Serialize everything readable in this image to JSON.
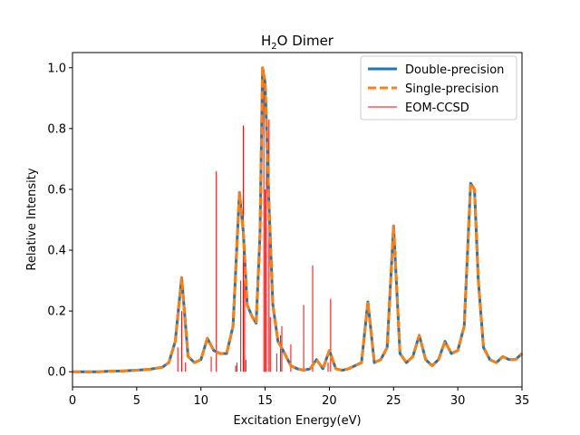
{
  "chart_data": {
    "type": "line",
    "title": "H",
    "title_sub": "2",
    "title_rest": "O Dimer",
    "xlabel": "Excitation Energy(eV)",
    "ylabel": "Relative Intensity",
    "xlim": [
      0,
      35
    ],
    "ylim": [
      -0.05,
      1.05
    ],
    "xticks": [
      0,
      5,
      10,
      15,
      20,
      25,
      30,
      35
    ],
    "xtick_labels": [
      "0",
      "5",
      "10",
      "15",
      "20",
      "25",
      "30",
      "35"
    ],
    "yticks": [
      0.0,
      0.2,
      0.4,
      0.6,
      0.8,
      1.0
    ],
    "ytick_labels": [
      "0.0",
      "0.2",
      "0.4",
      "0.6",
      "0.8",
      "1.0"
    ],
    "grid": false,
    "legend_position": "top-right",
    "x": [
      0,
      1,
      2,
      3,
      4,
      5,
      6,
      7,
      7.5,
      8,
      8.5,
      9,
      9.5,
      10,
      10.5,
      11,
      11.5,
      12,
      12.5,
      13,
      13.3,
      13.6,
      14,
      14.3,
      14.6,
      14.8,
      15,
      15.3,
      15.6,
      16,
      16.4,
      17,
      17.5,
      18,
      18.5,
      19,
      19.5,
      20,
      20.5,
      21,
      21.5,
      22,
      22.5,
      23,
      23.5,
      24,
      24.5,
      25,
      25.5,
      26,
      26.5,
      27,
      27.5,
      28,
      28.5,
      29,
      29.5,
      30,
      30.5,
      31,
      31.3,
      31.6,
      32,
      32.5,
      33,
      33.5,
      34,
      34.5,
      35
    ],
    "series": [
      {
        "name": "Double-precision",
        "color": "#1f77b4",
        "style": "solid",
        "values": [
          0.0,
          0.0,
          0.0,
          0.002,
          0.003,
          0.005,
          0.008,
          0.015,
          0.03,
          0.1,
          0.31,
          0.05,
          0.03,
          0.04,
          0.11,
          0.07,
          0.06,
          0.06,
          0.15,
          0.59,
          0.46,
          0.22,
          0.18,
          0.16,
          0.45,
          1.0,
          0.95,
          0.55,
          0.22,
          0.1,
          0.07,
          0.02,
          0.01,
          0.005,
          0.01,
          0.04,
          0.01,
          0.07,
          0.01,
          0.005,
          0.01,
          0.02,
          0.03,
          0.23,
          0.03,
          0.04,
          0.08,
          0.48,
          0.06,
          0.03,
          0.05,
          0.12,
          0.04,
          0.02,
          0.04,
          0.1,
          0.06,
          0.07,
          0.15,
          0.62,
          0.6,
          0.3,
          0.08,
          0.04,
          0.03,
          0.05,
          0.04,
          0.04,
          0.06
        ]
      },
      {
        "name": "Single-precision",
        "color": "#ff7f0e",
        "style": "dashed",
        "values": [
          0.0,
          0.0,
          0.0,
          0.002,
          0.003,
          0.005,
          0.008,
          0.015,
          0.03,
          0.1,
          0.31,
          0.05,
          0.03,
          0.04,
          0.11,
          0.07,
          0.06,
          0.06,
          0.15,
          0.59,
          0.46,
          0.22,
          0.18,
          0.16,
          0.45,
          1.0,
          0.95,
          0.55,
          0.22,
          0.1,
          0.07,
          0.02,
          0.01,
          0.005,
          0.01,
          0.04,
          0.01,
          0.07,
          0.01,
          0.005,
          0.01,
          0.02,
          0.03,
          0.23,
          0.03,
          0.04,
          0.08,
          0.48,
          0.06,
          0.03,
          0.05,
          0.12,
          0.04,
          0.02,
          0.04,
          0.1,
          0.06,
          0.07,
          0.15,
          0.62,
          0.6,
          0.3,
          0.08,
          0.04,
          0.03,
          0.05,
          0.04,
          0.04,
          0.06
        ]
      }
    ],
    "sticks": {
      "name": "EOM-CCSD",
      "color": "#ff0000",
      "x": [
        8.2,
        8.5,
        8.8,
        10.8,
        11.2,
        12.7,
        12.8,
        13.1,
        13.3,
        13.4,
        13.5,
        14.9,
        15.0,
        15.1,
        15.3,
        15.4,
        15.9,
        16.2,
        16.3,
        17.0,
        18.0,
        18.7,
        19.9,
        20.1
      ],
      "heights": [
        0.08,
        0.2,
        0.03,
        0.05,
        0.66,
        0.02,
        0.03,
        0.3,
        0.81,
        0.3,
        0.04,
        0.99,
        0.6,
        0.75,
        0.83,
        0.18,
        0.06,
        0.12,
        0.15,
        0.09,
        0.22,
        0.35,
        0.03,
        0.24
      ]
    },
    "legend": [
      {
        "label": "Double-precision",
        "color": "#1f77b4",
        "style": "solid"
      },
      {
        "label": "Single-precision",
        "color": "#ff7f0e",
        "style": "dashed"
      },
      {
        "label": "EOM-CCSD",
        "color": "#ff0000",
        "style": "thin"
      }
    ]
  }
}
